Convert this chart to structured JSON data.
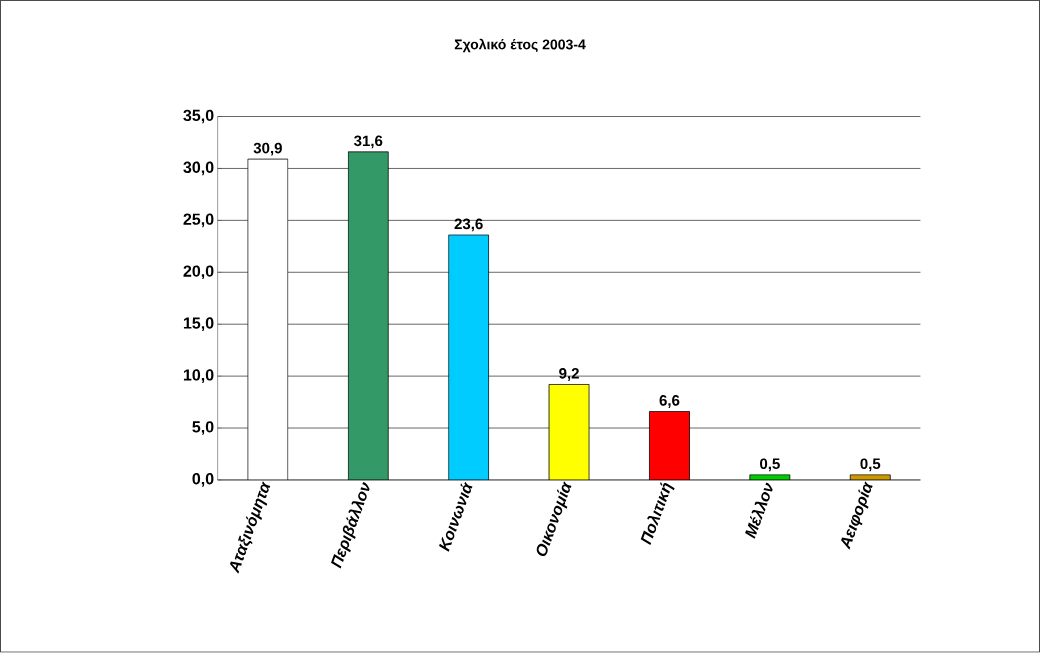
{
  "chart_data": {
    "type": "bar",
    "title": "Σχολικό έτος 2003-4",
    "categories": [
      "Αταξινόμητα",
      "Περιβάλλον",
      "Κοινωνιά",
      "Οικονομία",
      "Πολιτική",
      "Μέλλον",
      "Αειφορία"
    ],
    "values": [
      30.9,
      31.6,
      23.6,
      9.2,
      6.6,
      0.5,
      0.5
    ],
    "value_labels": [
      "30,9",
      "31,6",
      "23,6",
      "9,2",
      "6,6",
      "0,5",
      "0,5"
    ],
    "colors": [
      "#ffffff",
      "#339966",
      "#00ccff",
      "#ffff00",
      "#ff0000",
      "#00cc00",
      "#cc9900"
    ],
    "ylim": [
      0,
      35
    ],
    "yticks": [
      {
        "value": 0,
        "label": "0,0"
      },
      {
        "value": 5,
        "label": "5,0"
      },
      {
        "value": 10,
        "label": "10,0"
      },
      {
        "value": 15,
        "label": "15,0"
      },
      {
        "value": 20,
        "label": "20,0"
      },
      {
        "value": 25,
        "label": "25,0"
      },
      {
        "value": 30,
        "label": "30,0"
      },
      {
        "value": 35,
        "label": "35,0"
      }
    ],
    "grid": "y"
  }
}
